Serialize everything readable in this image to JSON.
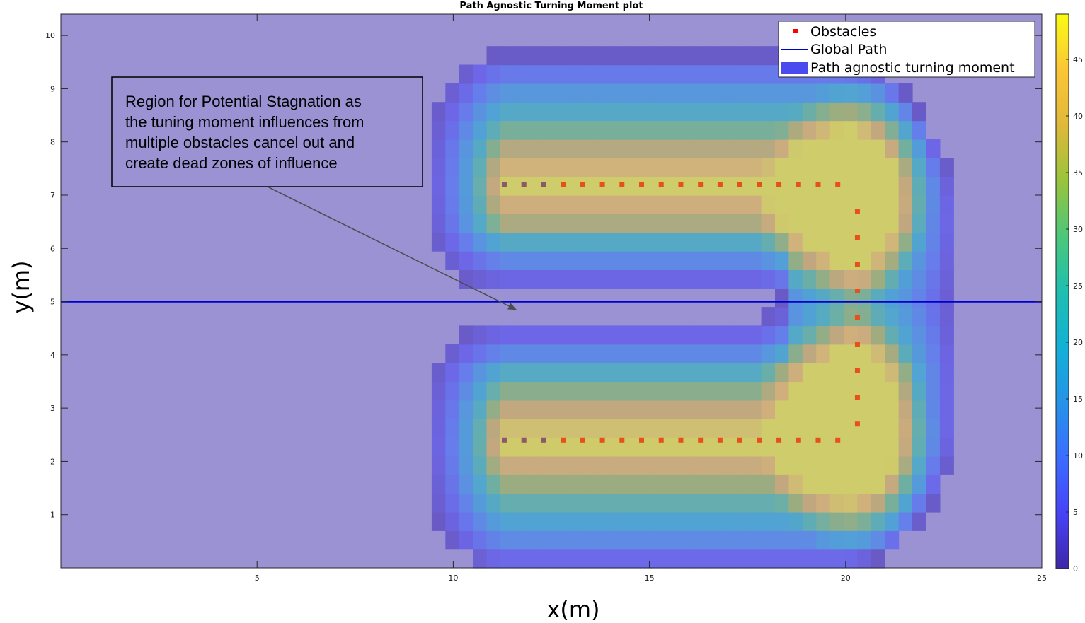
{
  "chart_data": {
    "type": "heatmap",
    "title": "Path Agnostic Turning Moment plot",
    "xlabel": "x(m)",
    "ylabel": "y(m)",
    "xlim": [
      0,
      25
    ],
    "ylim": [
      0,
      10.4
    ],
    "xticks": [
      5,
      10,
      15,
      20,
      25
    ],
    "yticks": [
      1,
      2,
      3,
      4,
      5,
      6,
      7,
      8,
      9,
      10
    ],
    "grid": false,
    "colormap": "parula",
    "colorbar": {
      "min": 0,
      "max": 49,
      "ticks": [
        0,
        5,
        10,
        15,
        20,
        25,
        30,
        35,
        40,
        45
      ]
    },
    "legend": {
      "placement": "top-right",
      "entries": [
        {
          "label": "Obstacles",
          "kind": "marker",
          "color": "#ff0000"
        },
        {
          "label": "Global Path",
          "kind": "line",
          "color": "#0000cc"
        },
        {
          "label": "Path agnostic turning moment",
          "kind": "patch",
          "color": "#4a4aee"
        }
      ]
    },
    "series": [
      {
        "name": "Obstacles",
        "type": "scatter",
        "color": "#e8501a",
        "points": [
          [
            11.3,
            7.2
          ],
          [
            11.8,
            7.2
          ],
          [
            12.3,
            7.2
          ],
          [
            12.8,
            7.2
          ],
          [
            13.3,
            7.2
          ],
          [
            13.8,
            7.2
          ],
          [
            14.3,
            7.2
          ],
          [
            14.8,
            7.2
          ],
          [
            15.3,
            7.2
          ],
          [
            15.8,
            7.2
          ],
          [
            16.3,
            7.2
          ],
          [
            16.8,
            7.2
          ],
          [
            17.3,
            7.2
          ],
          [
            17.8,
            7.2
          ],
          [
            18.3,
            7.2
          ],
          [
            18.8,
            7.2
          ],
          [
            19.3,
            7.2
          ],
          [
            19.8,
            7.2
          ],
          [
            20.3,
            6.7
          ],
          [
            20.3,
            6.2
          ],
          [
            20.3,
            5.7
          ],
          [
            20.3,
            5.2
          ],
          [
            20.3,
            4.7
          ],
          [
            20.3,
            4.2
          ],
          [
            20.3,
            3.7
          ],
          [
            20.3,
            3.2
          ],
          [
            20.3,
            2.7
          ],
          [
            11.3,
            2.4
          ],
          [
            11.8,
            2.4
          ],
          [
            12.3,
            2.4
          ],
          [
            12.8,
            2.4
          ],
          [
            13.3,
            2.4
          ],
          [
            13.8,
            2.4
          ],
          [
            14.3,
            2.4
          ],
          [
            14.8,
            2.4
          ],
          [
            15.3,
            2.4
          ],
          [
            15.8,
            2.4
          ],
          [
            16.3,
            2.4
          ],
          [
            16.8,
            2.4
          ],
          [
            17.3,
            2.4
          ],
          [
            17.8,
            2.4
          ],
          [
            18.3,
            2.4
          ],
          [
            18.8,
            2.4
          ],
          [
            19.3,
            2.4
          ],
          [
            19.8,
            2.4
          ]
        ]
      },
      {
        "name": "Global Path",
        "type": "line",
        "color": "#0000cc",
        "points": [
          [
            0,
            5
          ],
          [
            25,
            5
          ]
        ]
      }
    ],
    "annotation": {
      "text_lines": [
        "Region for Potential Stagnation as",
        "the tuning moment influences from",
        "multiple obstacles cancel out and",
        "create dead zones of influence"
      ],
      "arrow_to": [
        11.6,
        4.85
      ]
    }
  }
}
